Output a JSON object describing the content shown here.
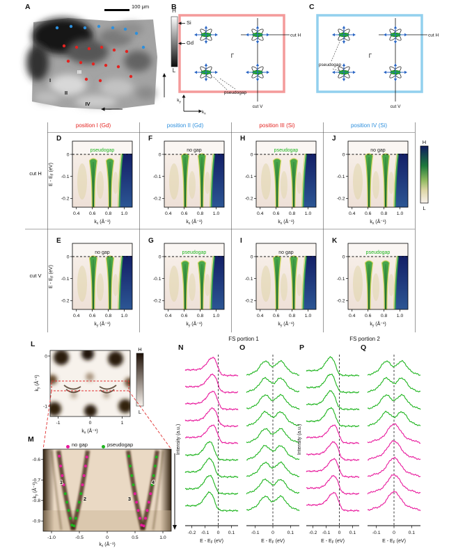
{
  "colors": {
    "magenta": "#e8189c",
    "green": "#1db41d",
    "red": "#e42320",
    "blue": "#2d8fdd",
    "pink_border": "#f49a9a",
    "light_blue_border": "#92d0ee",
    "arrow_blue": "#2b66c4",
    "dashed_red": "#e03030"
  },
  "panel_a": {
    "letter": "A",
    "scale_bar": "100 μm",
    "colorbar_high": "H",
    "colorbar_low": "L",
    "marker_si": "Si",
    "marker_gd": "Gd",
    "axis_up": "[010]",
    "axis_left": "[100]",
    "region_labels": [
      "I",
      "II",
      "III",
      "IV"
    ]
  },
  "panel_b": {
    "letter": "B",
    "gamma": "Γ",
    "cut_h": "cut H",
    "cut_v": "cut V",
    "pseudogap": "pseudogap",
    "axis_x": "kx",
    "axis_y": "ky"
  },
  "panel_c": {
    "letter": "C",
    "gamma": "Γ",
    "cut_h": "cut H",
    "cut_v": "cut V",
    "pseudogap": "pseudogap"
  },
  "arpes_grid": {
    "columns": [
      {
        "label": "position I (Gd)",
        "color": "#e42320"
      },
      {
        "label": "position II (Gd)",
        "color": "#2d8fdd"
      },
      {
        "label": "position III (Si)",
        "color": "#e42320"
      },
      {
        "label": "position IV (Si)",
        "color": "#2d8fdd"
      }
    ],
    "rows": [
      {
        "label": "cut H",
        "xlabel": "kx (Å⁻¹)"
      },
      {
        "label": "cut V",
        "xlabel": "ky (Å⁻¹)"
      }
    ],
    "ylabel": "E - EF (eV)",
    "yticks": [
      "0",
      "-0.1",
      "-0.2"
    ],
    "xticks": [
      "0.4",
      "0.6",
      "0.8",
      "1.0"
    ],
    "colorbar_high": "H",
    "colorbar_low": "L",
    "panels": [
      {
        "letter": "D",
        "row": 0,
        "col": 0,
        "gap_label": "pseudogap",
        "gap_type": "pseudogap"
      },
      {
        "letter": "F",
        "row": 0,
        "col": 1,
        "gap_label": "no gap",
        "gap_type": "nogap"
      },
      {
        "letter": "H",
        "row": 0,
        "col": 2,
        "gap_label": "pseudogap",
        "gap_type": "pseudogap"
      },
      {
        "letter": "J",
        "row": 0,
        "col": 3,
        "gap_label": "no gap",
        "gap_type": "nogap"
      },
      {
        "letter": "E",
        "row": 1,
        "col": 0,
        "gap_label": "no gap",
        "gap_type": "nogap"
      },
      {
        "letter": "G",
        "row": 1,
        "col": 1,
        "gap_label": "pseudogap",
        "gap_type": "pseudogap"
      },
      {
        "letter": "I",
        "row": 1,
        "col": 2,
        "gap_label": "no gap",
        "gap_type": "nogap"
      },
      {
        "letter": "K",
        "row": 1,
        "col": 3,
        "gap_label": "pseudogap",
        "gap_type": "pseudogap"
      }
    ]
  },
  "panel_l": {
    "letter": "L",
    "ylabel": "ky (Å⁻¹)",
    "xlabel": "kx (Å⁻¹)",
    "yticks": [
      "0",
      "-1"
    ],
    "xticks": [
      "-1",
      "0",
      "1"
    ],
    "colorbar_high": "H",
    "colorbar_low": "L"
  },
  "panel_m": {
    "letter": "M",
    "legend": [
      {
        "label": "no gap",
        "color": "#e8189c"
      },
      {
        "label": "pseudogap",
        "color": "#1db41d"
      }
    ],
    "ylabel": "ky (Å⁻¹)",
    "xlabel": "kx (Å⁻¹)",
    "yticks": [
      "-0.6",
      "-0.7",
      "-0.8",
      "-0.9"
    ],
    "xticks": [
      "-1.0",
      "-0.5",
      "0",
      "0.5",
      "1.0"
    ],
    "branch_numbers": [
      "1",
      "2",
      "3",
      "4"
    ]
  },
  "edc": {
    "group_headers": [
      "FS portion 1",
      "FS portion 2"
    ],
    "ylabel": "Intensity (a.u.)",
    "xlabel": "E - EF (eV)",
    "panels": [
      {
        "letter": "N",
        "kind": "edge",
        "xrange": [
          -0.25,
          0.15
        ],
        "xticks": [
          "-0.2",
          "-0.1",
          "0",
          "0.1"
        ],
        "curves": [
          "m",
          "m",
          "m",
          "m",
          "m",
          "g",
          "g",
          "g",
          "g"
        ]
      },
      {
        "letter": "O",
        "kind": "sym",
        "xrange": [
          -0.15,
          0.15
        ],
        "xticks": [
          "-0.1",
          "0",
          "0.1"
        ],
        "curves": [
          "g",
          "g",
          "g",
          "g",
          "g",
          "g",
          "g",
          "g",
          "g"
        ]
      },
      {
        "letter": "P",
        "kind": "edge",
        "xrange": [
          -0.25,
          0.15
        ],
        "xticks": [
          "-0.2",
          "-0.1",
          "0",
          "0.1"
        ],
        "curves": [
          "g",
          "g",
          "g",
          "g",
          "m",
          "m",
          "m",
          "m",
          "m"
        ]
      },
      {
        "letter": "Q",
        "kind": "sym",
        "xrange": [
          -0.15,
          0.15
        ],
        "xticks": [
          "-0.1",
          "0",
          "0.1"
        ],
        "curves": [
          "g",
          "g",
          "g",
          "g",
          "m",
          "m",
          "m",
          "m",
          "m"
        ]
      }
    ]
  }
}
